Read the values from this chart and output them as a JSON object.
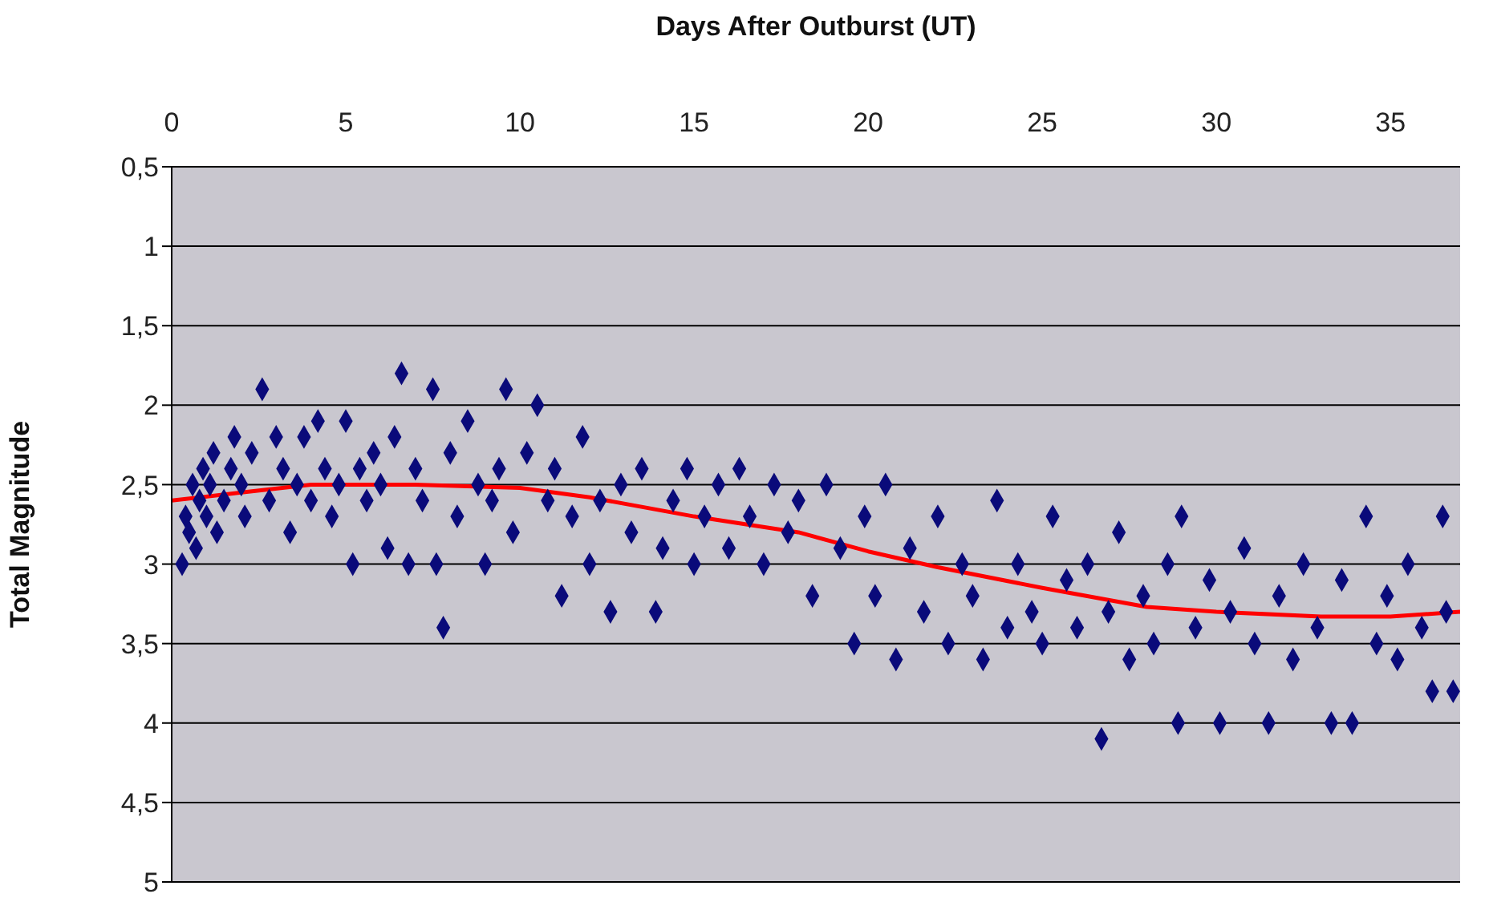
{
  "chart_data": {
    "type": "scatter",
    "xlabel": "Days After Outburst (UT)",
    "ylabel": "Total Magnitude",
    "xlim": [
      0,
      37
    ],
    "xticks": [
      0,
      5,
      10,
      15,
      20,
      25,
      30,
      35
    ],
    "ylim": [
      5,
      0.5
    ],
    "yticks": [
      {
        "value": 0.5,
        "label": "0,5"
      },
      1,
      {
        "value": 1.5,
        "label": "1,5"
      },
      2,
      {
        "value": 2.5,
        "label": "2,5"
      },
      3,
      {
        "value": 3.5,
        "label": "3,5"
      },
      4,
      {
        "value": 4.5,
        "label": "4,5"
      },
      5
    ],
    "grid": "y",
    "legend": false,
    "marker": "diamond",
    "series": [
      {
        "color": "#0a0a7a",
        "x": [
          0.3,
          0.4,
          0.5,
          0.6,
          0.7,
          0.8,
          0.9,
          1.0,
          1.1,
          1.2,
          1.3,
          1.5,
          1.7,
          1.8,
          2.0,
          2.1,
          2.3,
          2.6,
          2.8,
          3.0,
          3.2,
          3.4,
          3.6,
          3.8,
          4.0,
          4.2,
          4.4,
          4.6,
          4.8,
          5.0,
          5.2,
          5.4,
          5.6,
          5.8,
          6.0,
          6.2,
          6.4,
          6.6,
          6.8,
          7.0,
          7.2,
          7.5,
          7.6,
          7.8,
          8.0,
          8.2,
          8.5,
          8.8,
          9.0,
          9.2,
          9.4,
          9.6,
          9.8,
          10.2,
          10.5,
          10.8,
          11.0,
          11.2,
          11.5,
          11.8,
          12.0,
          12.3,
          12.6,
          12.9,
          13.2,
          13.5,
          13.9,
          14.1,
          14.4,
          14.8,
          15.0,
          15.3,
          15.7,
          16.0,
          16.3,
          16.6,
          17.0,
          17.3,
          17.7,
          18.0,
          18.4,
          18.8,
          19.2,
          19.6,
          19.9,
          20.2,
          20.5,
          20.8,
          21.2,
          21.6,
          22.0,
          22.3,
          22.7,
          23.0,
          23.3,
          23.7,
          24.0,
          24.3,
          24.7,
          25.0,
          25.3,
          25.7,
          26.0,
          26.3,
          26.7,
          26.9,
          27.2,
          27.5,
          27.9,
          28.2,
          28.6,
          28.9,
          29.0,
          29.4,
          29.8,
          30.1,
          30.4,
          30.8,
          31.1,
          31.5,
          31.8,
          32.2,
          32.5,
          32.9,
          33.3,
          33.6,
          33.9,
          34.3,
          34.6,
          34.9,
          35.2,
          35.5,
          35.9,
          36.2,
          36.5,
          36.6,
          36.8
        ],
        "values": [
          3.0,
          2.7,
          2.8,
          2.5,
          2.9,
          2.6,
          2.4,
          2.7,
          2.5,
          2.3,
          2.8,
          2.6,
          2.4,
          2.2,
          2.5,
          2.7,
          2.3,
          1.9,
          2.6,
          2.2,
          2.4,
          2.8,
          2.5,
          2.2,
          2.6,
          2.1,
          2.4,
          2.7,
          2.5,
          2.1,
          3.0,
          2.4,
          2.6,
          2.3,
          2.5,
          2.9,
          2.2,
          1.8,
          3.0,
          2.4,
          2.6,
          1.9,
          3.0,
          3.4,
          2.3,
          2.7,
          2.1,
          2.5,
          3.0,
          2.6,
          2.4,
          1.9,
          2.8,
          2.3,
          2.0,
          2.6,
          2.4,
          3.2,
          2.7,
          2.2,
          3.0,
          2.6,
          3.3,
          2.5,
          2.8,
          2.4,
          3.3,
          2.9,
          2.6,
          2.4,
          3.0,
          2.7,
          2.5,
          2.9,
          2.4,
          2.7,
          3.0,
          2.5,
          2.8,
          2.6,
          3.2,
          2.5,
          2.9,
          3.5,
          2.7,
          3.2,
          2.5,
          3.6,
          2.9,
          3.3,
          2.7,
          3.5,
          3.0,
          3.2,
          3.6,
          2.6,
          3.4,
          3.0,
          3.3,
          3.5,
          2.7,
          3.1,
          3.4,
          3.0,
          4.1,
          3.3,
          2.8,
          3.6,
          3.2,
          3.5,
          3.0,
          4.0,
          2.7,
          3.4,
          3.1,
          4.0,
          3.3,
          2.9,
          3.5,
          4.0,
          3.2,
          3.6,
          3.0,
          3.4,
          4.0,
          3.1,
          4.0,
          2.7,
          3.5,
          3.2,
          3.6,
          3.0,
          3.4,
          3.8,
          2.7,
          3.3,
          3.8
        ]
      },
      {
        "type": "line",
        "color": "#ff0000",
        "marker": "none",
        "x": [
          0,
          2,
          4,
          7,
          10,
          12,
          15,
          18,
          20,
          22,
          25,
          28,
          30,
          33,
          35,
          37
        ],
        "values": [
          2.6,
          2.55,
          2.5,
          2.5,
          2.52,
          2.58,
          2.7,
          2.8,
          2.92,
          3.02,
          3.15,
          3.27,
          3.3,
          3.33,
          3.33,
          3.3
        ]
      }
    ]
  }
}
